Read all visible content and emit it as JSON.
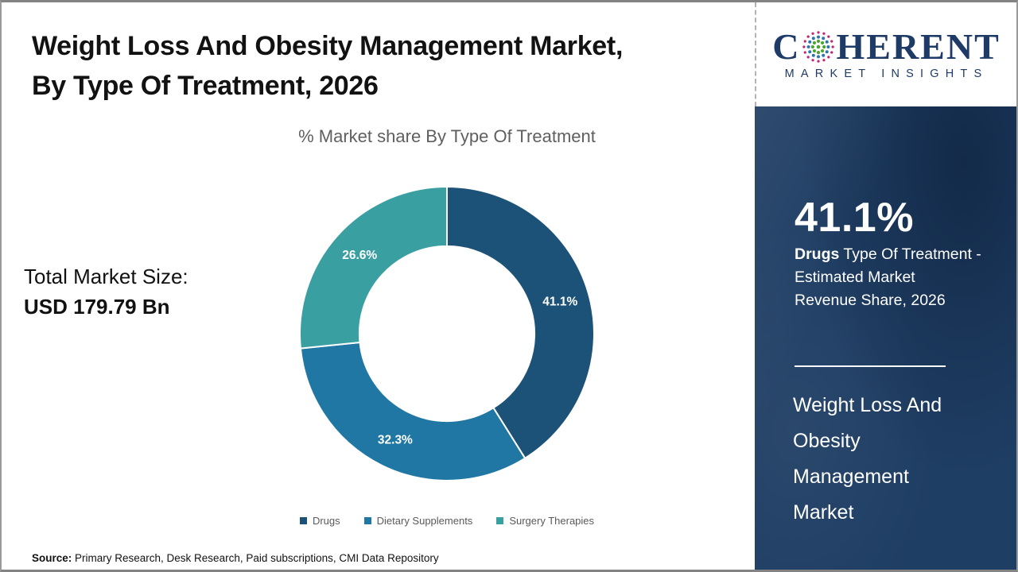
{
  "header": {
    "title_line1": "Weight Loss And Obesity Management Market,",
    "title_line2": "By Type Of Treatment, 2026"
  },
  "logo": {
    "word_start": "C",
    "word_end": "HERENT",
    "tagline": "MARKET INSIGHTS",
    "navy": "#1e3a66",
    "globe_colors": {
      "outer": "#c02475",
      "middle": "#2e74b5",
      "inner": "#4ca32f"
    }
  },
  "chart_data": {
    "type": "pie",
    "donut": true,
    "title": "% Market share By Type Of Treatment",
    "categories": [
      "Drugs",
      "Dietary Supplements",
      "Surgery Therapies"
    ],
    "values": [
      41.1,
      32.3,
      26.6
    ],
    "labels": [
      "41.1%",
      "32.3%",
      "26.6%"
    ],
    "colors": [
      "#1d5278",
      "#2077a3",
      "#399fa1"
    ],
    "start_angle_deg": 0,
    "direction": "clockwise",
    "inner_radius_ratio": 0.595,
    "legend_position": "bottom"
  },
  "left_panel": {
    "total_label": "Total Market Size:",
    "total_value": "USD 179.79 Bn"
  },
  "sidebar": {
    "bg_color": "#1f3e64",
    "stat_value": "41.1%",
    "stat_line1_bold": "Drugs",
    "stat_line1_rest": " Type Of Treatment -",
    "stat_line2": "Estimated Market",
    "stat_line3": "Revenue Share, 2026",
    "market_title_lines": [
      "Weight Loss And",
      "Obesity",
      "Management",
      "Market"
    ]
  },
  "footer": {
    "source_label": "Source:",
    "source_text": " Primary Research, Desk Research, Paid subscriptions, CMI Data Repository"
  }
}
